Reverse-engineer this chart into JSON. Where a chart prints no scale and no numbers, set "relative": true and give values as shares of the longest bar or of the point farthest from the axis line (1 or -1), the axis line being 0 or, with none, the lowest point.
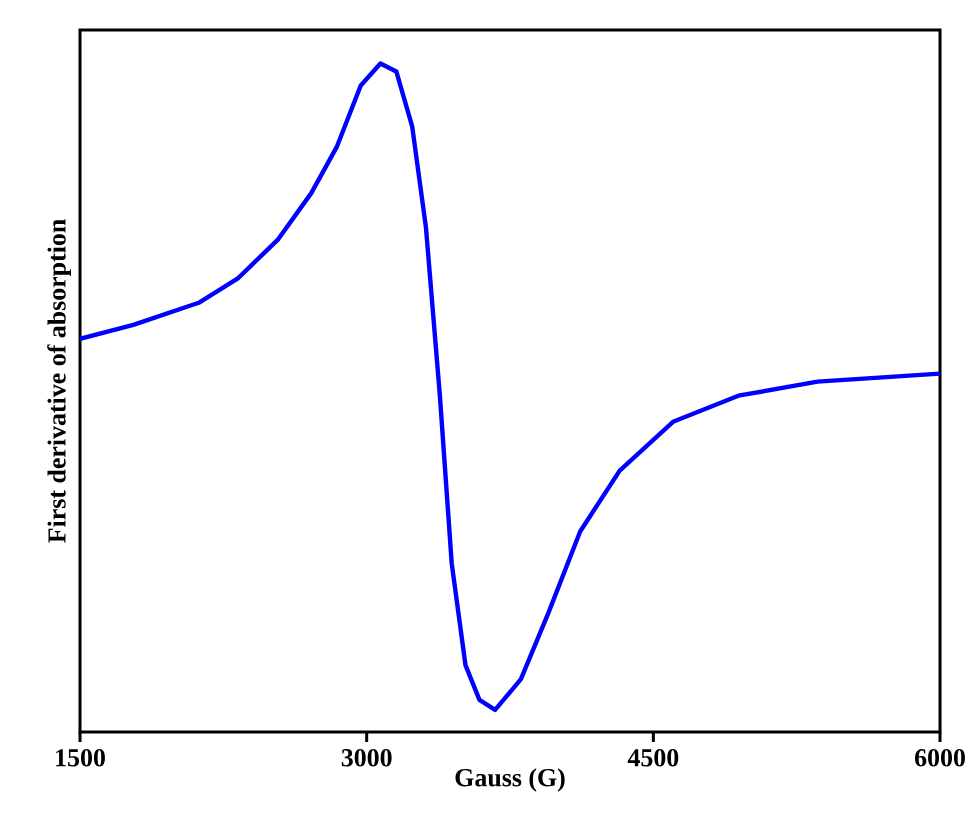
{
  "chart_data": {
    "type": "line",
    "xlabel": "Gauss (G)",
    "ylabel": "First derivative of absorption",
    "relative": true,
    "xlim": [
      1500,
      6000
    ],
    "xticks": [
      1500,
      3000,
      4500,
      6000
    ],
    "grid": false,
    "marker": "none",
    "line_style": "solid",
    "series": [
      {
        "color": "#0000ff",
        "x": [
          1500,
          1779,
          2121,
          2328,
          2534,
          2710,
          2845,
          2969,
          3072,
          3155,
          3238,
          3310,
          3383,
          3445,
          3517,
          3590,
          3672,
          3807,
          3952,
          4117,
          4324,
          4603,
          4945,
          5359,
          6000
        ],
        "values": [
          0.588,
          0.609,
          0.642,
          0.679,
          0.736,
          0.806,
          0.876,
          0.967,
          1.0,
          0.988,
          0.906,
          0.755,
          0.503,
          0.252,
          0.1,
          0.048,
          0.033,
          0.079,
          0.179,
          0.3,
          0.391,
          0.464,
          0.503,
          0.524,
          0.536
        ]
      }
    ]
  }
}
